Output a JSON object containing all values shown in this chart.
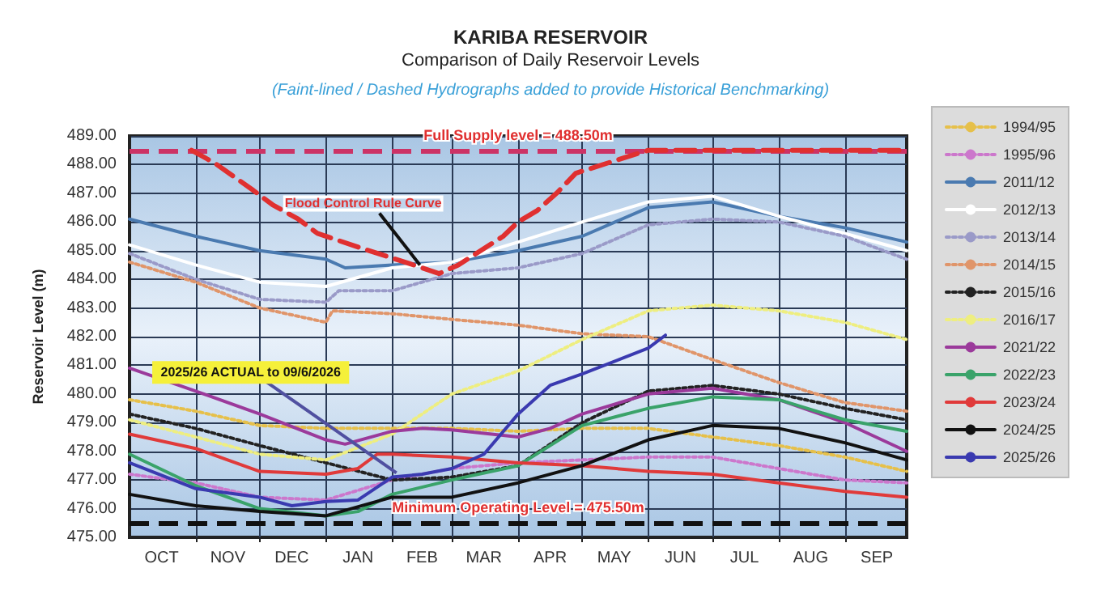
{
  "chart_data": {
    "type": "line",
    "title": "KARIBA RESERVOIR",
    "subtitle": "Comparison of Daily Reservoir Levels",
    "ylabel": "Reservoir Level (m)",
    "annotations": [
      "(Faint-lined / Dashed Hydrographs added to provide Historical Benchmarking)",
      {
        "text": "Flood Control Rule Curve",
        "x": "2026-02-14",
        "y": 484.5
      },
      {
        "text": "2025/26 ACTUAL to 09/6/2026",
        "x": "2026-02-03",
        "y": 477.25
      }
    ],
    "xlim": [
      "2025-10-01",
      "2026-09-30"
    ],
    "xticks": [
      {
        "value": "2025-10-16",
        "label": "OCT"
      },
      {
        "value": "2025-11-01",
        "label": null
      },
      {
        "value": "2025-11-16",
        "label": "NOV"
      },
      {
        "value": "2025-12-01",
        "label": null
      },
      {
        "value": "2025-12-16",
        "label": "DEC"
      },
      {
        "value": "2026-01-01",
        "label": null
      },
      {
        "value": "2026-01-16",
        "label": "JAN"
      },
      {
        "value": "2026-02-01",
        "label": null
      },
      {
        "value": "2026-02-15",
        "label": "FEB"
      },
      {
        "value": "2026-03-01",
        "label": null
      },
      {
        "value": "2026-03-16",
        "label": "MAR"
      },
      {
        "value": "2026-04-01",
        "label": null
      },
      {
        "value": "2026-04-16",
        "label": "APR"
      },
      {
        "value": "2026-05-01",
        "label": null
      },
      {
        "value": "2026-05-16",
        "label": "MAY"
      },
      {
        "value": "2026-06-01",
        "label": null
      },
      {
        "value": "2026-06-16",
        "label": "JUN"
      },
      {
        "value": "2026-07-01",
        "label": null
      },
      {
        "value": "2026-07-16",
        "label": "JUL"
      },
      {
        "value": "2026-08-01",
        "label": null
      },
      {
        "value": "2026-08-16",
        "label": "AUG"
      },
      {
        "value": "2026-09-01",
        "label": null
      },
      {
        "value": "2026-09-16",
        "label": "SEP"
      }
    ],
    "ylim": [
      475,
      489
    ],
    "yticks": [
      {
        "value": 475,
        "label": "475.00"
      },
      {
        "value": 476,
        "label": "476.00"
      },
      {
        "value": 477,
        "label": "477.00"
      },
      {
        "value": 478,
        "label": "478.00"
      },
      {
        "value": 479,
        "label": "479.00"
      },
      {
        "value": 480,
        "label": "480.00"
      },
      {
        "value": 481,
        "label": "481.00"
      },
      {
        "value": 482,
        "label": "482.00"
      },
      {
        "value": 483,
        "label": "483.00"
      },
      {
        "value": 484,
        "label": "484.00"
      },
      {
        "value": 485,
        "label": "485.00"
      },
      {
        "value": 486,
        "label": "486.00"
      },
      {
        "value": 487,
        "label": "487.00"
      },
      {
        "value": 488,
        "label": "488.00"
      },
      {
        "value": 489,
        "label": "489.00"
      }
    ],
    "grid": true,
    "legend": "right",
    "marker": "none",
    "ref_lines": [
      {
        "axis": "y",
        "value": 488.5,
        "label": "Full Supply level = 488.50m",
        "color": "#cc3366",
        "line_style": "dashed"
      },
      {
        "axis": "y",
        "value": 475.5,
        "label": "Minimum Operating Level = 475.50m",
        "color": "#111111",
        "line_style": "dashed"
      }
    ],
    "series": [
      {
        "name": "1994/95",
        "color": "#e6c04a",
        "line_style": "dotted",
        "x": [
          "2025-10-01",
          "2025-11-01",
          "2025-12-01",
          "2026-01-01",
          "2026-02-01",
          "2026-03-01",
          "2026-04-01",
          "2026-05-01",
          "2026-06-01",
          "2026-07-01",
          "2026-08-01",
          "2026-09-01",
          "2026-09-30"
        ],
        "values": [
          479.8,
          479.4,
          478.9,
          478.8,
          478.8,
          478.8,
          478.7,
          478.8,
          478.8,
          478.5,
          478.2,
          477.8,
          477.3
        ]
      },
      {
        "name": "1995/96",
        "color": "#cc77cc",
        "line_style": "dotted",
        "x": [
          "2025-10-01",
          "2025-11-01",
          "2025-12-01",
          "2026-01-01",
          "2026-02-01",
          "2026-03-01",
          "2026-04-01",
          "2026-05-01",
          "2026-06-01",
          "2026-07-01",
          "2026-08-01",
          "2026-09-01",
          "2026-09-30"
        ],
        "values": [
          477.2,
          476.9,
          476.4,
          476.3,
          477.0,
          477.4,
          477.6,
          477.7,
          477.8,
          477.8,
          477.4,
          477.0,
          476.9
        ]
      },
      {
        "name": "2011/12",
        "color": "#4a7ab0",
        "line_style": "solid",
        "x": [
          "2025-10-01",
          "2025-11-01",
          "2025-12-01",
          "2026-01-01",
          "2026-01-10",
          "2026-02-01",
          "2026-03-01",
          "2026-04-01",
          "2026-05-01",
          "2026-06-01",
          "2026-07-01",
          "2026-08-01",
          "2026-09-01",
          "2026-09-30"
        ],
        "values": [
          486.1,
          485.5,
          485.0,
          484.7,
          484.4,
          484.5,
          484.6,
          485.0,
          485.5,
          486.5,
          486.7,
          486.2,
          485.8,
          485.3
        ]
      },
      {
        "name": "2012/13",
        "color": "#ffffff",
        "line_style": "solid",
        "x": [
          "2025-10-01",
          "2025-11-01",
          "2025-12-01",
          "2026-01-01",
          "2026-02-01",
          "2026-03-01",
          "2026-04-01",
          "2026-05-01",
          "2026-06-01",
          "2026-07-01",
          "2026-08-01",
          "2026-09-01",
          "2026-09-30"
        ],
        "values": [
          485.2,
          484.5,
          483.9,
          483.75,
          484.4,
          484.6,
          485.3,
          486.0,
          486.7,
          486.9,
          486.2,
          485.6,
          485.0
        ]
      },
      {
        "name": "2013/14",
        "color": "#9a9ac8",
        "line_style": "dotted",
        "x": [
          "2025-10-01",
          "2025-11-01",
          "2025-12-01",
          "2026-01-01",
          "2026-01-07",
          "2026-02-01",
          "2026-03-01",
          "2026-04-01",
          "2026-05-01",
          "2026-06-01",
          "2026-07-01",
          "2026-08-01",
          "2026-09-01",
          "2026-09-30"
        ],
        "values": [
          484.9,
          484.0,
          483.3,
          483.2,
          483.6,
          483.6,
          484.2,
          484.4,
          484.9,
          485.9,
          486.1,
          486.0,
          485.5,
          484.7
        ]
      },
      {
        "name": "2014/15",
        "color": "#e0956a",
        "line_style": "dotted",
        "x": [
          "2025-10-01",
          "2025-11-01",
          "2025-12-01",
          "2026-01-01",
          "2026-01-04",
          "2026-02-01",
          "2026-03-01",
          "2026-04-01",
          "2026-05-01",
          "2026-06-01",
          "2026-07-01",
          "2026-08-01",
          "2026-09-01",
          "2026-09-30"
        ],
        "values": [
          484.6,
          483.9,
          483.0,
          482.5,
          482.9,
          482.8,
          482.6,
          482.4,
          482.1,
          482.0,
          481.2,
          480.4,
          479.7,
          479.4
        ]
      },
      {
        "name": "2015/16",
        "color": "#222222",
        "line_style": "dotted",
        "x": [
          "2025-10-01",
          "2025-11-01",
          "2025-12-01",
          "2026-01-01",
          "2026-02-01",
          "2026-03-01",
          "2026-04-01",
          "2026-05-01",
          "2026-06-01",
          "2026-07-01",
          "2026-08-01",
          "2026-09-01",
          "2026-09-30"
        ],
        "values": [
          479.3,
          478.8,
          478.2,
          477.6,
          477.0,
          477.1,
          477.5,
          479.0,
          480.1,
          480.3,
          480.0,
          479.5,
          479.1
        ]
      },
      {
        "name": "2016/17",
        "color": "#eeee80",
        "line_style": "dotted",
        "x": [
          "2025-10-01",
          "2025-11-01",
          "2025-12-01",
          "2026-01-01",
          "2026-02-01",
          "2026-02-09",
          "2026-03-01",
          "2026-04-01",
          "2026-05-01",
          "2026-06-01",
          "2026-07-01",
          "2026-08-01",
          "2026-09-01",
          "2026-09-30"
        ],
        "values": [
          479.1,
          478.5,
          477.9,
          477.7,
          478.6,
          479.0,
          480.0,
          480.8,
          481.9,
          482.9,
          483.1,
          482.9,
          482.5,
          481.9
        ]
      },
      {
        "name": "2021/22",
        "color": "#9b3a9b",
        "line_style": "solid",
        "x": [
          "2025-10-01",
          "2025-11-01",
          "2025-12-01",
          "2026-01-01",
          "2026-01-10",
          "2026-02-01",
          "2026-02-15",
          "2026-03-01",
          "2026-04-01",
          "2026-04-16",
          "2026-05-01",
          "2026-06-01",
          "2026-07-01",
          "2026-08-01",
          "2026-09-01",
          "2026-09-30"
        ],
        "values": [
          480.9,
          480.1,
          479.3,
          478.4,
          478.25,
          478.7,
          478.8,
          478.75,
          478.5,
          478.8,
          479.3,
          480.0,
          480.2,
          479.8,
          479.0,
          478.0
        ]
      },
      {
        "name": "2022/23",
        "color": "#3aa36a",
        "line_style": "solid",
        "x": [
          "2025-10-01",
          "2025-11-01",
          "2025-12-01",
          "2026-01-01",
          "2026-01-16",
          "2026-02-01",
          "2026-03-01",
          "2026-04-01",
          "2026-05-01",
          "2026-06-01",
          "2026-07-01",
          "2026-08-01",
          "2026-09-01",
          "2026-09-30"
        ],
        "values": [
          477.9,
          476.8,
          476.0,
          475.75,
          475.9,
          476.5,
          477.0,
          477.5,
          478.9,
          479.5,
          479.9,
          479.8,
          479.1,
          478.7
        ]
      },
      {
        "name": "2023/24",
        "color": "#e03a3a",
        "line_style": "solid",
        "x": [
          "2025-10-01",
          "2025-11-01",
          "2025-12-01",
          "2026-01-01",
          "2026-01-16",
          "2026-01-25",
          "2026-02-01",
          "2026-03-01",
          "2026-04-01",
          "2026-05-01",
          "2026-06-01",
          "2026-07-01",
          "2026-08-01",
          "2026-09-01",
          "2026-09-30"
        ],
        "values": [
          478.6,
          478.1,
          477.3,
          477.2,
          477.4,
          477.9,
          477.9,
          477.8,
          477.6,
          477.5,
          477.3,
          477.2,
          476.9,
          476.6,
          476.4
        ]
      },
      {
        "name": "2024/25",
        "color": "#111111",
        "line_style": "solid",
        "x": [
          "2025-10-01",
          "2025-11-01",
          "2025-12-01",
          "2026-01-01",
          "2026-02-01",
          "2026-03-01",
          "2026-04-01",
          "2026-05-01",
          "2026-06-01",
          "2026-07-01",
          "2026-08-01",
          "2026-09-01",
          "2026-09-30"
        ],
        "values": [
          476.5,
          476.1,
          475.9,
          475.75,
          476.4,
          476.4,
          476.9,
          477.5,
          478.4,
          478.9,
          478.8,
          478.3,
          477.7
        ]
      },
      {
        "name": "2025/26",
        "color": "#3a3ab0",
        "line_style": "solid",
        "x": [
          "2025-10-01",
          "2025-11-01",
          "2025-12-01",
          "2025-12-16",
          "2026-01-01",
          "2026-01-16",
          "2026-02-01",
          "2026-02-15",
          "2026-03-01",
          "2026-03-16",
          "2026-04-01",
          "2026-04-16",
          "2026-05-01",
          "2026-06-01",
          "2026-06-09"
        ],
        "values": [
          477.6,
          476.7,
          476.4,
          476.1,
          476.25,
          476.3,
          477.1,
          477.2,
          477.4,
          477.9,
          479.3,
          480.3,
          480.7,
          481.6,
          482.05
        ]
      },
      {
        "color": "#e03030",
        "line_style": "dashed",
        "x": [
          "2025-10-30",
          "2025-11-10",
          "2025-11-28",
          "2025-12-07",
          "2025-12-19",
          "2025-12-28",
          "2026-01-19",
          "2026-02-09",
          "2026-02-23",
          "2026-03-04",
          "2026-03-25",
          "2026-04-01",
          "2026-04-10",
          "2026-04-19",
          "2026-04-28",
          "2026-05-19",
          "2026-06-01",
          "2026-09-30"
        ],
        "values": [
          488.5,
          488.05,
          487.1,
          486.6,
          486.1,
          485.6,
          485.05,
          484.55,
          484.2,
          484.5,
          485.5,
          486.0,
          486.4,
          487.0,
          487.7,
          488.2,
          488.5,
          488.5
        ]
      }
    ]
  }
}
